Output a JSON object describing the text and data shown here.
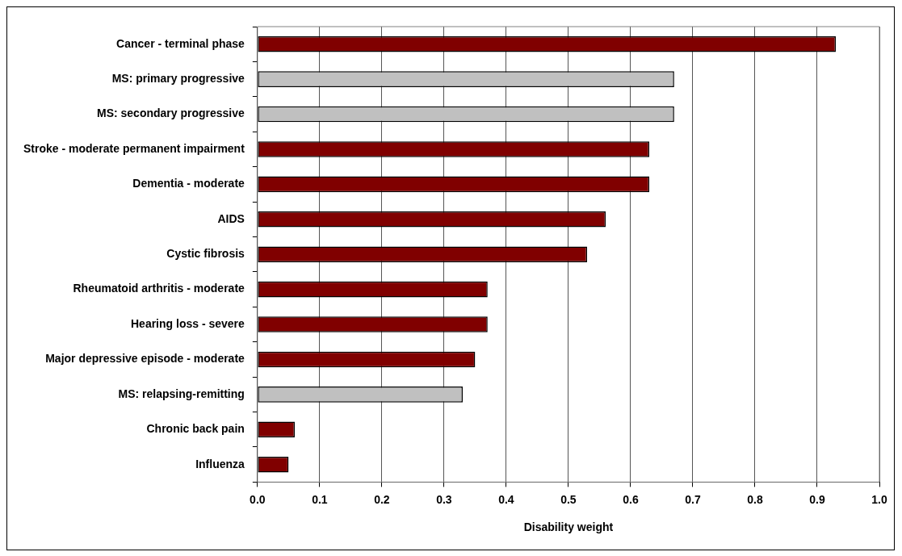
{
  "chart_data": {
    "type": "bar",
    "orientation": "horizontal",
    "xlabel": "Disability weight",
    "categories": [
      "Cancer - terminal phase",
      "MS: primary progressive",
      "MS: secondary progressive",
      "Stroke - moderate permanent impairment",
      "Dementia - moderate",
      "AIDS",
      "Cystic fibrosis",
      "Rheumatoid arthritis - moderate",
      "Hearing loss - severe",
      "Major depressive episode - moderate",
      "MS: relapsing-remitting",
      "Chronic back pain",
      "Influenza"
    ],
    "values": [
      0.93,
      0.67,
      0.67,
      0.63,
      0.63,
      0.56,
      0.53,
      0.37,
      0.37,
      0.35,
      0.33,
      0.06,
      0.05
    ],
    "colors": [
      "#800000",
      "#c0c0c0",
      "#c0c0c0",
      "#800000",
      "#800000",
      "#800000",
      "#800000",
      "#800000",
      "#800000",
      "#800000",
      "#c0c0c0",
      "#800000",
      "#800000"
    ],
    "xlim": [
      0,
      1
    ],
    "xticks": [
      {
        "value": 0,
        "label": "0.0"
      },
      0.1,
      0.2,
      0.3,
      0.4,
      0.5,
      0.6,
      0.7,
      0.8,
      0.9,
      {
        "value": 1,
        "label": "1.0"
      }
    ],
    "grid": "x",
    "legend": false
  }
}
